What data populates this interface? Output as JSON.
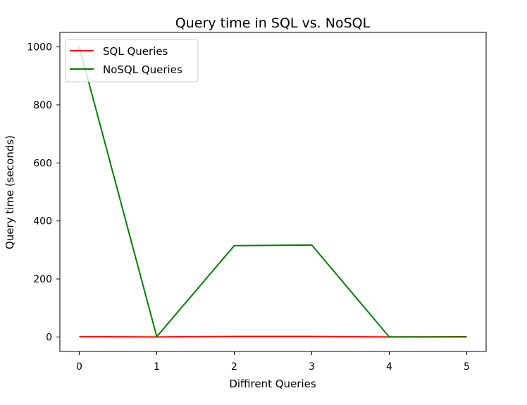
{
  "chart_data": {
    "type": "line",
    "title": "Query time in SQL vs. NoSQL",
    "xlabel": "Diffirent Queries",
    "ylabel": "Query time (seconds)",
    "x": [
      0,
      1,
      2,
      3,
      4,
      5
    ],
    "xlim": [
      -0.25,
      5.25
    ],
    "ylim": [
      -50,
      1050
    ],
    "xticks": [
      0,
      1,
      2,
      3,
      4,
      5
    ],
    "yticks": [
      0,
      200,
      400,
      600,
      800,
      1000
    ],
    "grid": false,
    "legend_position": "upper-left",
    "series": [
      {
        "name": "SQL Queries",
        "color": "#ff0000",
        "values": [
          1,
          0,
          2,
          2,
          0,
          1
        ]
      },
      {
        "name": "NoSQL Queries",
        "color": "#008000",
        "values": [
          1000,
          1,
          315,
          317,
          0,
          0
        ]
      }
    ]
  }
}
